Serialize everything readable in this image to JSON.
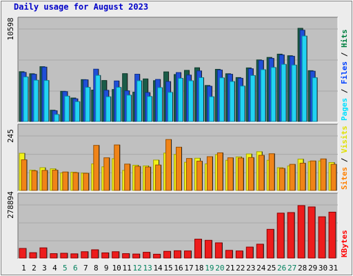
{
  "title": "Daily usage for August 2023",
  "chart_data": [
    {
      "type": "bar",
      "panel": "hits-files-pages",
      "categories": [
        "1",
        "2",
        "3",
        "4",
        "5",
        "6",
        "7",
        "8",
        "9",
        "10",
        "11",
        "12",
        "13",
        "14",
        "15",
        "16",
        "17",
        "18",
        "19",
        "20",
        "21",
        "22",
        "23",
        "24",
        "25",
        "26",
        "27",
        "28",
        "29",
        "30",
        "31"
      ],
      "ymax": 10598,
      "ymax_label": "10598",
      "grid": true,
      "legend": [
        {
          "text": "Hits",
          "color": "#008040"
        },
        {
          "text": "Files",
          "color": "#0040ff"
        },
        {
          "text": "Pages",
          "color": "#00e0ff"
        }
      ],
      "series": [
        {
          "name": "Hits",
          "color": "#008040",
          "values": [
            5663,
            5428,
            6232,
            1279,
            3430,
            2669,
            4759,
            3569,
            4659,
            3634,
            5441,
            3327,
            4840,
            4643,
            5641,
            5341,
            5811,
            6109,
            4094,
            5930,
            5429,
            4994,
            6093,
            7002,
            7286,
            7659,
            7479,
            10598,
            5778,
            0,
            0
          ]
        },
        {
          "name": "Files",
          "color": "#0040ff",
          "values": [
            5583,
            5365,
            6183,
            1224,
            3399,
            2577,
            4738,
            5948,
            3547,
            4608,
            3487,
            5375,
            3290,
            4780,
            4539,
            5562,
            5276,
            5749,
            4008,
            5854,
            5372,
            4915,
            5999,
            6940,
            7179,
            7573,
            7420,
            10384,
            5717,
            0,
            0
          ]
        },
        {
          "name": "Pages",
          "color": "#00e0ff",
          "values": [
            5060,
            4693,
            4662,
            793,
            2878,
            2254,
            3883,
            5241,
            2813,
            3884,
            2992,
            4629,
            2842,
            3854,
            3310,
            4907,
            4629,
            4983,
            2814,
            4963,
            4544,
            4028,
            5229,
            5892,
            6142,
            6497,
            6415,
            9722,
            4976,
            0,
            0
          ]
        }
      ]
    },
    {
      "type": "bar",
      "panel": "visits-sites",
      "categories": [
        "1",
        "2",
        "3",
        "4",
        "5",
        "6",
        "7",
        "8",
        "9",
        "10",
        "11",
        "12",
        "13",
        "14",
        "15",
        "16",
        "17",
        "18",
        "19",
        "20",
        "21",
        "22",
        "23",
        "24",
        "25",
        "26",
        "27",
        "28",
        "29",
        "30",
        "31"
      ],
      "ymax": 245,
      "ymax_label": "245",
      "grid": true,
      "legend": [
        {
          "text": "Visits",
          "color": "#e0e000"
        },
        {
          "text": "Sites",
          "color": "#ff8000"
        }
      ],
      "series": [
        {
          "name": "Visits",
          "color": "#ffff00",
          "values": [
            165,
            90,
            101,
            96,
            78,
            81,
            77,
            118,
            105,
            141,
            89,
            112,
            109,
            135,
            166,
            160,
            125,
            143,
            118,
            159,
            134,
            149,
            162,
            172,
            134,
            101,
            109,
            139,
            128,
            131,
            124
          ]
        },
        {
          "name": "Sites",
          "color": "#ff8000",
          "values": [
            136,
            87,
            89,
            90,
            82,
            79,
            76,
            200,
            145,
            202,
            117,
            107,
            104,
            113,
            226,
            192,
            142,
            130,
            150,
            167,
            145,
            144,
            146,
            156,
            163,
            98,
            116,
            121,
            131,
            140,
            116
          ]
        }
      ]
    },
    {
      "type": "bar",
      "panel": "kbytes",
      "categories": [
        "1",
        "2",
        "3",
        "4",
        "5",
        "6",
        "7",
        "8",
        "9",
        "10",
        "11",
        "12",
        "13",
        "14",
        "15",
        "16",
        "17",
        "18",
        "19",
        "20",
        "21",
        "22",
        "23",
        "24",
        "25",
        "26",
        "27",
        "28",
        "29",
        "30",
        "31"
      ],
      "ymax": 278894,
      "ymax_label": "278894",
      "grid": true,
      "legend": [
        {
          "text": "KBytes",
          "color": "#ff0000"
        }
      ],
      "series": [
        {
          "name": "KBytes",
          "color": "#ff0000",
          "values": [
            50000,
            28000,
            53000,
            23000,
            25000,
            22000,
            33000,
            43000,
            27000,
            33000,
            23000,
            21000,
            30000,
            20000,
            35000,
            38000,
            37000,
            98000,
            92000,
            79000,
            40000,
            37000,
            57000,
            72000,
            149000,
            233000,
            236000,
            272000,
            265000,
            214000,
            238000
          ]
        }
      ]
    }
  ],
  "day_labels": [
    {
      "text": "1",
      "color": "#000000"
    },
    {
      "text": "2",
      "color": "#000000"
    },
    {
      "text": "3",
      "color": "#000000"
    },
    {
      "text": "4",
      "color": "#000000"
    },
    {
      "text": "5",
      "color": "#00805c"
    },
    {
      "text": "6",
      "color": "#00805c"
    },
    {
      "text": "7",
      "color": "#000000"
    },
    {
      "text": "8",
      "color": "#000000"
    },
    {
      "text": "9",
      "color": "#000000"
    },
    {
      "text": "10",
      "color": "#000000"
    },
    {
      "text": "11",
      "color": "#000000"
    },
    {
      "text": "12",
      "color": "#00805c"
    },
    {
      "text": "13",
      "color": "#00805c"
    },
    {
      "text": "14",
      "color": "#000000"
    },
    {
      "text": "15",
      "color": "#000000"
    },
    {
      "text": "16",
      "color": "#000000"
    },
    {
      "text": "17",
      "color": "#000000"
    },
    {
      "text": "18",
      "color": "#000000"
    },
    {
      "text": "19",
      "color": "#00805c"
    },
    {
      "text": "20",
      "color": "#00805c"
    },
    {
      "text": "21",
      "color": "#000000"
    },
    {
      "text": "22",
      "color": "#000000"
    },
    {
      "text": "23",
      "color": "#000000"
    },
    {
      "text": "24",
      "color": "#000000"
    },
    {
      "text": "25",
      "color": "#000000"
    },
    {
      "text": "26",
      "color": "#00805c"
    },
    {
      "text": "27",
      "color": "#00805c"
    },
    {
      "text": "28",
      "color": "#000000"
    },
    {
      "text": "29",
      "color": "#000000"
    },
    {
      "text": "30",
      "color": "#000000"
    },
    {
      "text": "31",
      "color": "#000000"
    }
  ]
}
